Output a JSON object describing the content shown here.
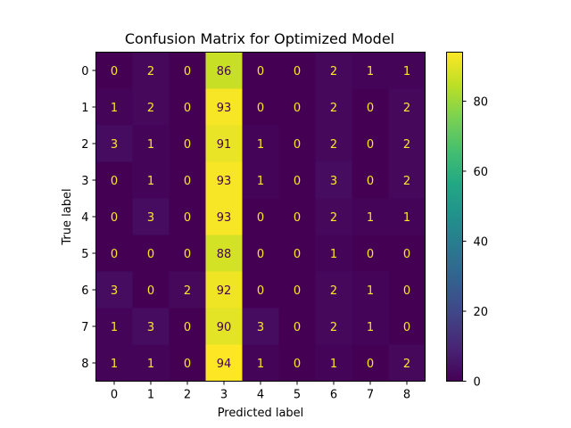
{
  "chart_data": {
    "type": "heatmap",
    "title": "Confusion Matrix for Optimized Model",
    "xlabel": "Predicted label",
    "ylabel": "True label",
    "x_categories": [
      "0",
      "1",
      "2",
      "3",
      "4",
      "5",
      "6",
      "7",
      "8"
    ],
    "y_categories": [
      "0",
      "1",
      "2",
      "3",
      "4",
      "5",
      "6",
      "7",
      "8"
    ],
    "values": [
      [
        0,
        2,
        0,
        86,
        0,
        0,
        2,
        1,
        1
      ],
      [
        1,
        2,
        0,
        93,
        0,
        0,
        2,
        0,
        2
      ],
      [
        3,
        1,
        0,
        91,
        1,
        0,
        2,
        0,
        2
      ],
      [
        0,
        1,
        0,
        93,
        1,
        0,
        3,
        0,
        2
      ],
      [
        0,
        3,
        0,
        93,
        0,
        0,
        2,
        1,
        1
      ],
      [
        0,
        0,
        0,
        88,
        0,
        0,
        1,
        0,
        0
      ],
      [
        3,
        0,
        2,
        92,
        0,
        0,
        2,
        1,
        0
      ],
      [
        1,
        3,
        0,
        90,
        3,
        0,
        2,
        1,
        0
      ],
      [
        1,
        1,
        0,
        94,
        1,
        0,
        1,
        0,
        2
      ]
    ],
    "colormap": "viridis",
    "colorbar": {
      "range": [
        0,
        94
      ],
      "ticks": [
        0,
        20,
        40,
        60,
        80
      ]
    },
    "text_color_low": "#fde725",
    "text_color_high": "#440154"
  }
}
